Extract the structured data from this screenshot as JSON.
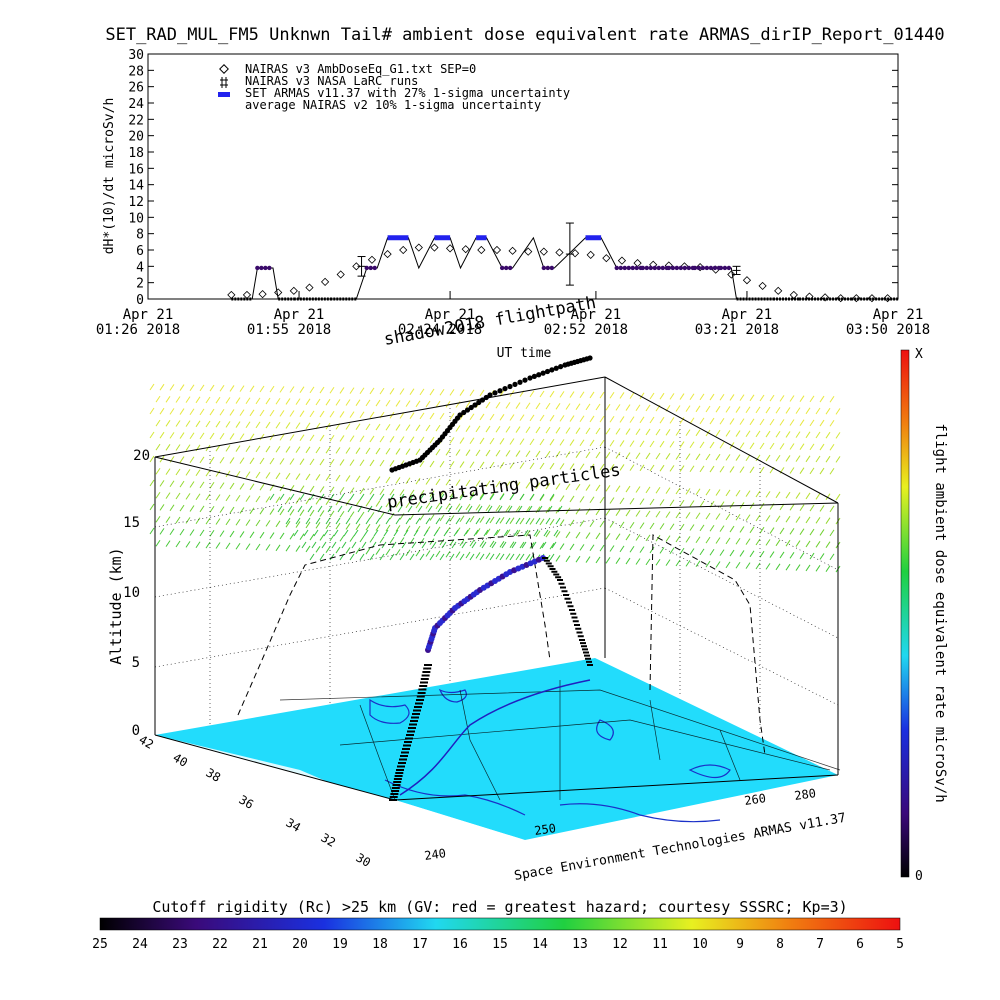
{
  "title": "SET_RAD_MUL_FM5 Unknwn Tail#  ambient dose equivalent rate ARMAS_dirIP_Report_01440",
  "chart_data": [
    {
      "type": "line",
      "ylabel": "dH*(10)/dt microSv/h",
      "xlabel": "UT time",
      "ylim": [
        0,
        30
      ],
      "yticks": [
        0,
        2,
        4,
        6,
        8,
        10,
        12,
        14,
        16,
        18,
        20,
        22,
        24,
        26,
        28,
        30
      ],
      "xticks": [
        {
          "month": "Apr 21",
          "time": "01:26 2018"
        },
        {
          "month": "Apr 21",
          "time": "01:55 2018"
        },
        {
          "month": "Apr 21",
          "time": "02:24 2018"
        },
        {
          "month": "Apr 21",
          "time": "02:52 2018"
        },
        {
          "month": "Apr 21",
          "time": "03:21 2018"
        },
        {
          "month": "Apr 21",
          "time": "03:50 2018"
        }
      ],
      "xticks_minutes": [
        0,
        29,
        58,
        86,
        115,
        144
      ],
      "legend": [
        {
          "name": "NAIRAS v3 AmbDoseEq_G1.txt SEP=0",
          "symbol": "diamond"
        },
        {
          "name": "NAIRAS v3 NASA LaRC runs",
          "symbol": "plus"
        },
        {
          "name": "SET ARMAS v11.37 with 27% 1-sigma uncertainty",
          "symbol": "blue-bar"
        },
        {
          "name": "average NAIRAS v2 10% 1-sigma uncertainty",
          "symbol": "none"
        }
      ],
      "series": [
        {
          "name": "NAIRAS v3 AmbDoseEq_G1.txt SEP=0",
          "x": [
            16,
            19,
            22,
            25,
            28,
            31,
            34,
            37,
            40,
            43,
            46,
            49,
            52,
            55,
            58,
            61,
            64,
            67,
            70,
            73,
            76,
            79,
            82,
            85,
            88,
            91,
            94,
            97,
            100,
            103,
            106,
            109,
            112,
            115,
            118,
            121,
            124,
            127,
            130,
            133,
            136,
            139,
            142
          ],
          "values": [
            0.5,
            0.5,
            0.6,
            0.8,
            1.0,
            1.4,
            2.1,
            3.0,
            4.0,
            4.8,
            5.5,
            6.0,
            6.3,
            6.3,
            6.2,
            6.1,
            6.0,
            6.0,
            5.9,
            5.8,
            5.8,
            5.7,
            5.6,
            5.4,
            5.0,
            4.7,
            4.4,
            4.2,
            4.1,
            4.0,
            3.9,
            3.6,
            3.0,
            2.3,
            1.6,
            1.0,
            0.5,
            0.3,
            0.2,
            0.1,
            0.1,
            0.1,
            0.1
          ]
        },
        {
          "name": "SET ARMAS v11.37 with 27% 1-sigma uncertainty",
          "x": [
            16,
            20,
            21,
            24,
            25,
            28,
            35,
            40,
            42,
            44,
            46,
            50,
            52,
            55,
            58,
            60,
            63,
            65,
            68,
            70,
            74,
            76,
            78,
            84,
            87,
            90,
            95,
            100,
            105,
            110,
            112,
            113,
            120,
            125,
            135,
            144
          ],
          "values": [
            0,
            0,
            3.8,
            3.8,
            0,
            0,
            0,
            0,
            3.8,
            3.8,
            7.5,
            7.5,
            3.8,
            7.5,
            7.5,
            3.8,
            7.5,
            7.5,
            3.8,
            3.8,
            7.5,
            3.8,
            3.8,
            7.5,
            7.5,
            3.8,
            3.8,
            3.8,
            3.8,
            3.8,
            3.8,
            0,
            0,
            0,
            0,
            0
          ]
        },
        {
          "name": "NAIRAS v3 NASA LaRC runs",
          "x": [
            41,
            81,
            113
          ],
          "values": [
            4,
            5.5,
            3.5
          ],
          "err": [
            1.2,
            3.8,
            0.5
          ]
        }
      ]
    },
    {
      "type": "scatter",
      "annotations": [
        "shadow2018 flightpath",
        "precipitating particles"
      ],
      "zlabel": "Altitude (km)",
      "zticks": [
        0,
        5,
        10,
        15,
        20
      ],
      "lat_ticks": [
        30,
        32,
        34,
        36,
        38,
        40,
        42
      ],
      "lon_ticks": [
        240,
        250,
        260,
        280
      ],
      "credit": "Space Environment Technologies ARMAS v11.37",
      "colorbar_label": "flight ambient dose equivalent rate microSv/h",
      "colorbar_top": "X",
      "colorbar_bottom": "0"
    },
    {
      "type": "heatmap",
      "title": "Cutoff rigidity (Rc) >25 km (GV: red = greatest hazard; courtesy SSSRC; Kp=3)",
      "ticks": [
        25,
        24,
        23,
        22,
        21,
        20,
        19,
        18,
        17,
        16,
        15,
        14,
        13,
        12,
        11,
        10,
        9,
        8,
        7,
        6,
        5
      ]
    }
  ],
  "colors": {
    "armas": "#2222ee",
    "armas_dots": "#3a0a6a",
    "map": "#22dcfc",
    "coast": "#1a30c8"
  }
}
